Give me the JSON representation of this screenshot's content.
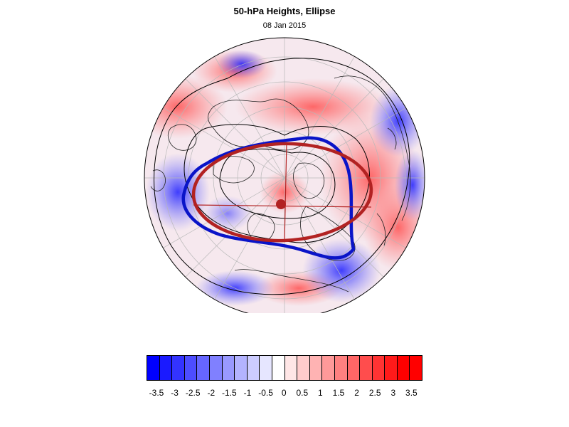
{
  "title": "50-hPa Heights, Ellipse",
  "subtitle": "08 Jan 2015",
  "colors": {
    "ellipse": "#b22222",
    "vortex_edge": "#0a14c8",
    "height_contour": "#000000",
    "positive_anomaly": "#ff0000",
    "negative_anomaly": "#0000ff"
  },
  "colorbar": {
    "colors": [
      "#0000ff",
      "#1a1aff",
      "#3333ff",
      "#4d4dff",
      "#6666ff",
      "#8080ff",
      "#9999ff",
      "#b3b3ff",
      "#ccccff",
      "#e6e6ff",
      "#ffffff",
      "#ffe6e6",
      "#ffcccc",
      "#ffb3b3",
      "#ff9999",
      "#ff8080",
      "#ff6666",
      "#ff4d4d",
      "#ff3333",
      "#ff1a1a",
      "#ff0000",
      "#ff0000"
    ],
    "tick_labels": [
      "-3.5",
      "-3",
      "-2.5",
      "-2",
      "-1.5",
      "-1",
      "-0.5",
      "0",
      "0.5",
      "1",
      "1.5",
      "2",
      "2.5",
      "3",
      "3.5"
    ],
    "min": -3.5,
    "max": 3.5
  }
}
